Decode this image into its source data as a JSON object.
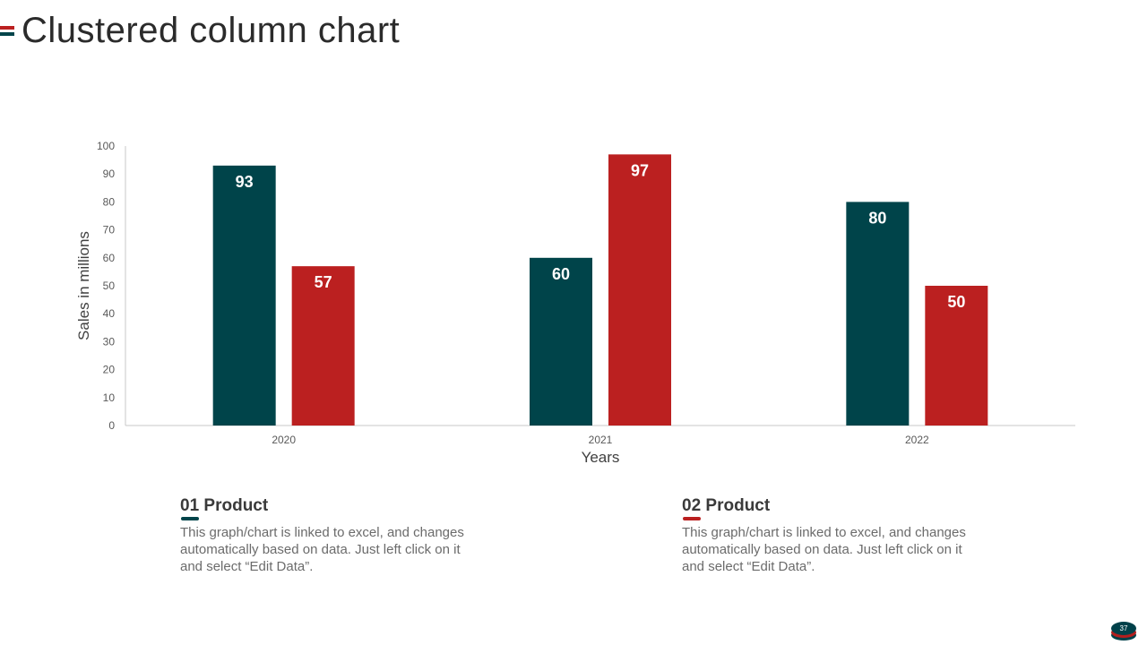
{
  "slide": {
    "title": "Clustered column chart",
    "page_number": "37"
  },
  "colors": {
    "product1": "#00444a",
    "product2": "#bb2020",
    "axis": "#c8c8c8",
    "tick_text": "#595959"
  },
  "chart_data": {
    "type": "bar",
    "categories": [
      "2020",
      "2021",
      "2022"
    ],
    "series": [
      {
        "name": "Product 01",
        "values": [
          93,
          60,
          80
        ]
      },
      {
        "name": "Product 02",
        "values": [
          57,
          97,
          50
        ]
      }
    ],
    "xlabel": "Years",
    "ylabel": "Sales in millions",
    "ylim": [
      0,
      100
    ],
    "yticks": [
      0,
      10,
      20,
      30,
      40,
      50,
      60,
      70,
      80,
      90,
      100
    ],
    "data_labels": true
  },
  "legend": [
    {
      "number": "01",
      "label": "Product",
      "description": "This graph/chart is linked to excel, and changes automatically based on data. Just left click on it and select “Edit Data”."
    },
    {
      "number": "02",
      "label": "Product",
      "description": "This graph/chart is linked to excel, and changes automatically based on data. Just left click on it and select “Edit Data”."
    }
  ]
}
